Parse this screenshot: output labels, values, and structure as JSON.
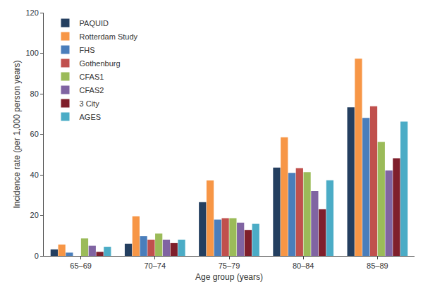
{
  "chart_data": {
    "type": "bar",
    "x_label": "Age group (years)",
    "y_label": "Incidence rate (per 1,000 person years)",
    "categories": [
      "65–69",
      "70–74",
      "75–79",
      "80–84",
      "85–89"
    ],
    "series": [
      {
        "name": "PAQUID",
        "color": "#243f60",
        "values": [
          3.2,
          6,
          26.5,
          43.6,
          73.3
        ]
      },
      {
        "name": "Rotterdam Study",
        "color": "#f79646",
        "values": [
          5.6,
          19.5,
          37.2,
          58.5,
          97.3
        ]
      },
      {
        "name": "FHS",
        "color": "#4a7ebb",
        "values": [
          1.6,
          9.7,
          17.9,
          41,
          68.1
        ]
      },
      {
        "name": "Gothenburg",
        "color": "#c0504d",
        "values": [
          null,
          8,
          18.6,
          43.3,
          73.8
        ]
      },
      {
        "name": "CFAS1",
        "color": "#9bbb59",
        "values": [
          8.6,
          11,
          18.6,
          41.3,
          56.3
        ]
      },
      {
        "name": "CFAS2",
        "color": "#8064a2",
        "values": [
          5,
          8,
          16.4,
          32,
          42.2
        ]
      },
      {
        "name": "3 City",
        "color": "#7f1f2b",
        "values": [
          2,
          6.3,
          12.8,
          23,
          48.2
        ]
      },
      {
        "name": "AGES",
        "color": "#4bacc6",
        "values": [
          4.5,
          8,
          15.8,
          37.3,
          66.3
        ]
      }
    ],
    "ylim": [
      0,
      120
    ],
    "yticks": [
      0,
      20,
      40,
      60,
      80,
      100,
      120
    ],
    "grid": false,
    "legend": "top-left"
  }
}
